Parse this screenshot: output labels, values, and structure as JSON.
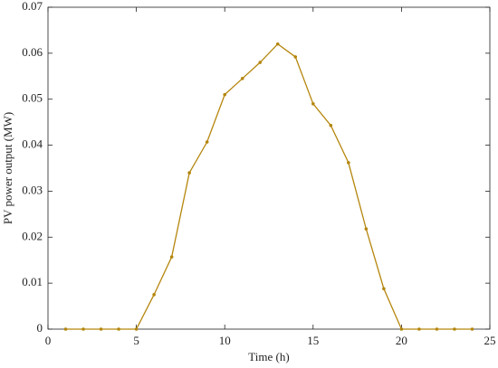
{
  "chart_data": {
    "type": "line",
    "xlabel": "Time (h)",
    "ylabel": "PV power output (MW)",
    "x": [
      1,
      2,
      3,
      4,
      5,
      6,
      7,
      8,
      9,
      10,
      11,
      12,
      13,
      14,
      15,
      16,
      17,
      18,
      19,
      20,
      21,
      22,
      23,
      24
    ],
    "values": [
      0,
      0,
      0,
      0,
      0,
      0.0075,
      0.0157,
      0.034,
      0.0407,
      0.051,
      0.0545,
      0.058,
      0.062,
      0.0592,
      0.049,
      0.0443,
      0.0362,
      0.0218,
      0.0088,
      0,
      0,
      0,
      0,
      0
    ],
    "color": "#b5860d",
    "xlim": [
      0,
      25
    ],
    "xticks": [
      0,
      5,
      10,
      15,
      20,
      25
    ],
    "ylim": [
      0,
      0.07
    ],
    "yticks": [
      0,
      0.01,
      0.02,
      0.03,
      0.04,
      0.05,
      0.06,
      0.07
    ],
    "grid": false
  }
}
